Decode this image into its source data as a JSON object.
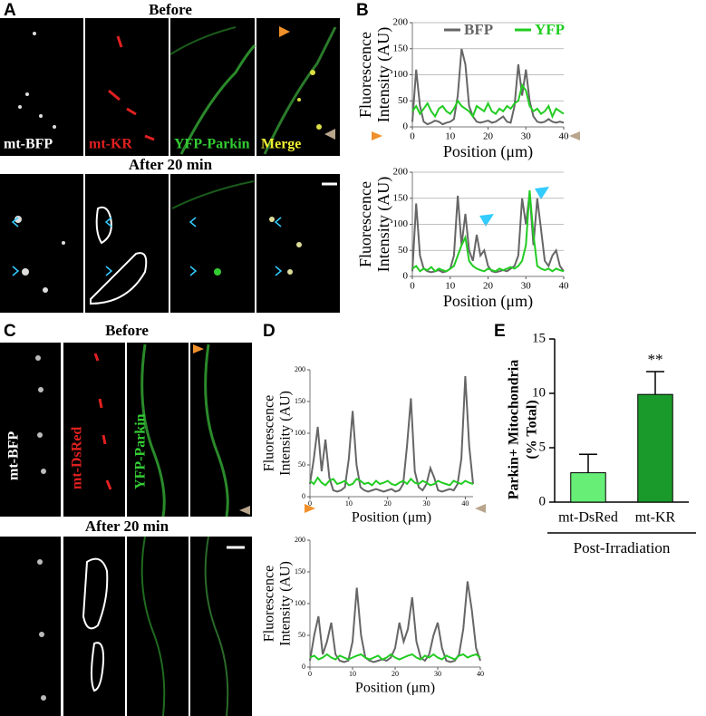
{
  "figure": {
    "A": {
      "letter": "A",
      "before": "Before",
      "after": "After 20 min",
      "channels": [
        "mt-BFP",
        "mt-KR",
        "YFP-Parkin",
        "Merge"
      ]
    },
    "B": {
      "letter": "B"
    },
    "C": {
      "letter": "C",
      "before": "Before",
      "after": "After 20 min",
      "channels": [
        "mt-BFP",
        "mt-DsRed",
        "YFP-Parkin"
      ]
    },
    "D": {
      "letter": "D"
    },
    "E": {
      "letter": "E"
    }
  },
  "chart_data": [
    {
      "type": "line",
      "legend": "top",
      "grid": true,
      "xlabel": "Position (μm)",
      "ylabel": [
        "Fluorescence",
        "Intensity (AU)"
      ],
      "xlim": [
        0,
        40
      ],
      "xticks": [
        0,
        10,
        20,
        30,
        40
      ],
      "ylim": [
        0,
        200
      ],
      "yticks": [
        0,
        50,
        100,
        150,
        200
      ],
      "x": [
        0,
        1,
        2,
        3,
        4,
        5,
        6,
        7,
        8,
        9,
        10,
        11,
        12,
        13,
        14,
        15,
        16,
        17,
        18,
        19,
        20,
        21,
        22,
        23,
        24,
        25,
        26,
        27,
        28,
        29,
        30,
        31,
        32,
        33,
        34,
        35,
        36,
        37,
        38,
        39,
        40
      ],
      "series": [
        {
          "name": "BFP",
          "color": "#666666",
          "values": [
            10,
            110,
            40,
            10,
            5,
            8,
            12,
            10,
            5,
            8,
            10,
            15,
            60,
            150,
            120,
            40,
            20,
            10,
            8,
            10,
            12,
            8,
            10,
            15,
            20,
            10,
            8,
            40,
            120,
            60,
            110,
            50,
            20,
            10,
            8,
            10,
            15,
            10,
            8,
            10,
            8
          ]
        },
        {
          "name": "YFP",
          "color": "#22cc22",
          "values": [
            30,
            40,
            25,
            35,
            45,
            30,
            20,
            35,
            40,
            30,
            25,
            35,
            50,
            40,
            35,
            30,
            20,
            40,
            35,
            30,
            45,
            30,
            25,
            35,
            30,
            40,
            35,
            45,
            50,
            80,
            70,
            40,
            30,
            35,
            25,
            30,
            40,
            20,
            35,
            30,
            25
          ]
        }
      ]
    },
    {
      "type": "line",
      "grid": true,
      "xlabel": "Position (μm)",
      "ylabel": [
        "Fluorescence",
        "Intensity (AU)"
      ],
      "xlim": [
        0,
        40
      ],
      "xticks": [
        0,
        10,
        20,
        30,
        40
      ],
      "ylim": [
        0,
        200
      ],
      "yticks": [
        0,
        50,
        100,
        150,
        200
      ],
      "x": [
        0,
        1,
        2,
        3,
        4,
        5,
        6,
        7,
        8,
        9,
        10,
        11,
        12,
        13,
        14,
        15,
        16,
        17,
        18,
        19,
        20,
        21,
        22,
        23,
        24,
        25,
        26,
        27,
        28,
        29,
        30,
        31,
        32,
        33,
        34,
        35,
        36,
        37,
        38,
        39,
        40
      ],
      "series": [
        {
          "color": "#666666",
          "values": [
            10,
            140,
            40,
            15,
            10,
            8,
            10,
            12,
            8,
            10,
            15,
            40,
            155,
            60,
            120,
            50,
            30,
            80,
            40,
            50,
            20,
            10,
            8,
            10,
            12,
            10,
            15,
            20,
            40,
            150,
            100,
            160,
            60,
            150,
            90,
            30,
            20,
            40,
            50,
            20,
            10
          ]
        },
        {
          "color": "#22cc22",
          "values": [
            15,
            20,
            10,
            15,
            12,
            18,
            10,
            15,
            12,
            10,
            15,
            20,
            40,
            60,
            75,
            30,
            20,
            15,
            12,
            10,
            15,
            12,
            10,
            15,
            12,
            15,
            18,
            15,
            20,
            30,
            60,
            165,
            80,
            20,
            15,
            12,
            15,
            10,
            15,
            12,
            10
          ]
        }
      ]
    },
    {
      "type": "line",
      "grid": false,
      "xlabel": "Position (μm)",
      "ylabel": [
        "Fluorescence",
        "Intensity (AU)"
      ],
      "xlim": [
        0,
        42
      ],
      "xticks": [
        0,
        10,
        20,
        30,
        40
      ],
      "ylim": [
        0,
        200
      ],
      "yticks": [
        0,
        50,
        100,
        150,
        200
      ],
      "x": [
        0,
        1,
        2,
        3,
        4,
        5,
        6,
        7,
        8,
        9,
        10,
        11,
        12,
        13,
        14,
        15,
        16,
        17,
        18,
        19,
        20,
        21,
        22,
        23,
        24,
        25,
        26,
        27,
        28,
        29,
        30,
        31,
        32,
        33,
        34,
        35,
        36,
        37,
        38,
        39,
        40,
        41,
        42
      ],
      "series": [
        {
          "color": "#666666",
          "values": [
            20,
            60,
            110,
            40,
            90,
            30,
            10,
            8,
            10,
            15,
            60,
            135,
            50,
            15,
            10,
            8,
            10,
            12,
            10,
            8,
            10,
            12,
            8,
            10,
            20,
            80,
            155,
            40,
            15,
            10,
            20,
            45,
            30,
            10,
            8,
            10,
            12,
            10,
            20,
            60,
            190,
            80,
            20
          ]
        },
        {
          "color": "#22cc22",
          "values": [
            25,
            20,
            30,
            22,
            18,
            25,
            28,
            20,
            22,
            25,
            18,
            20,
            28,
            25,
            20,
            22,
            18,
            25,
            20,
            22,
            25,
            20,
            18,
            22,
            25,
            20,
            28,
            22,
            20,
            25,
            22,
            18,
            20,
            25,
            22,
            20,
            18,
            25,
            22,
            20,
            25,
            22,
            20
          ]
        }
      ]
    },
    {
      "type": "line",
      "grid": false,
      "xlabel": "Position (μm)",
      "ylabel": [
        "Fluorescence",
        "Intensity (AU)"
      ],
      "xlim": [
        0,
        40
      ],
      "xticks": [
        0,
        10,
        20,
        30,
        40
      ],
      "ylim": [
        0,
        200
      ],
      "yticks": [
        0,
        50,
        100,
        150,
        200
      ],
      "x": [
        0,
        1,
        2,
        3,
        4,
        5,
        6,
        7,
        8,
        9,
        10,
        11,
        12,
        13,
        14,
        15,
        16,
        17,
        18,
        19,
        20,
        21,
        22,
        23,
        24,
        25,
        26,
        27,
        28,
        29,
        30,
        31,
        32,
        33,
        34,
        35,
        36,
        37,
        38,
        39,
        40
      ],
      "series": [
        {
          "color": "#666666",
          "values": [
            10,
            50,
            80,
            20,
            40,
            70,
            20,
            10,
            8,
            10,
            40,
            125,
            50,
            15,
            10,
            8,
            10,
            12,
            10,
            15,
            30,
            70,
            40,
            60,
            110,
            40,
            15,
            10,
            20,
            50,
            70,
            30,
            10,
            8,
            10,
            20,
            60,
            135,
            90,
            30,
            10
          ]
        },
        {
          "color": "#22cc22",
          "values": [
            15,
            18,
            12,
            15,
            20,
            15,
            12,
            18,
            15,
            12,
            15,
            18,
            20,
            15,
            12,
            15,
            18,
            12,
            15,
            20,
            15,
            12,
            15,
            18,
            20,
            15,
            12,
            18,
            15,
            20,
            15,
            12,
            18,
            15,
            12,
            18,
            20,
            15,
            18,
            20,
            15
          ]
        }
      ]
    },
    {
      "type": "bar",
      "ylabel": [
        "Parkin+ Mitochondria",
        "(% Total)"
      ],
      "xlabel": "Post-Irradiation",
      "categories": [
        "mt-DsRed",
        "mt-KR"
      ],
      "values": [
        2.7,
        9.9
      ],
      "errors": [
        1.7,
        2.1
      ],
      "colors": [
        "#66ee77",
        "#1a9a2a"
      ],
      "annotation": "**",
      "ylim": [
        0,
        15
      ],
      "yticks": [
        0,
        5,
        10,
        15
      ]
    }
  ]
}
